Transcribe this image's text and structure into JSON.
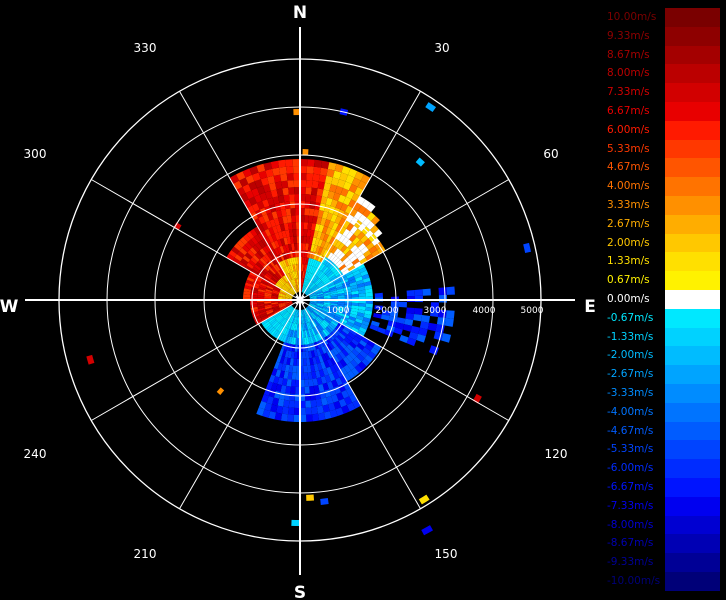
{
  "compass": {
    "north": "N",
    "south": "S",
    "east": "E",
    "west": "W"
  },
  "azimuth_labels": [
    "30",
    "60",
    "120",
    "150",
    "210",
    "240",
    "300",
    "330"
  ],
  "range_labels": [
    "1000",
    "2000",
    "3000",
    "4000",
    "5000"
  ],
  "legend": [
    {
      "label": "10.00m/s",
      "color": "#7a0000"
    },
    {
      "label": "9.33m/s",
      "color": "#8e0000"
    },
    {
      "label": "8.67m/s",
      "color": "#a40000"
    },
    {
      "label": "8.00m/s",
      "color": "#bb0000"
    },
    {
      "label": "7.33m/s",
      "color": "#d20000"
    },
    {
      "label": "6.67m/s",
      "color": "#e80000"
    },
    {
      "label": "6.00m/s",
      "color": "#ff1a00"
    },
    {
      "label": "5.33m/s",
      "color": "#ff3800"
    },
    {
      "label": "4.67m/s",
      "color": "#ff5500"
    },
    {
      "label": "4.00m/s",
      "color": "#ff7300"
    },
    {
      "label": "3.33m/s",
      "color": "#ff9000"
    },
    {
      "label": "2.67m/s",
      "color": "#ffad00"
    },
    {
      "label": "2.00m/s",
      "color": "#ffc800"
    },
    {
      "label": "1.33m/s",
      "color": "#ffe000"
    },
    {
      "label": "0.67m/s",
      "color": "#fff200"
    },
    {
      "label": "0.00m/s",
      "color": "#ffffff"
    },
    {
      "label": "-0.67m/s",
      "color": "#00e8ff"
    },
    {
      "label": "-1.33m/s",
      "color": "#00d2ff"
    },
    {
      "label": "-2.00m/s",
      "color": "#00bcff"
    },
    {
      "label": "-2.67m/s",
      "color": "#00a4ff"
    },
    {
      "label": "-3.33m/s",
      "color": "#008cff"
    },
    {
      "label": "-4.00m/s",
      "color": "#0074ff"
    },
    {
      "label": "-4.67m/s",
      "color": "#005cff"
    },
    {
      "label": "-5.33m/s",
      "color": "#0044ff"
    },
    {
      "label": "-6.00m/s",
      "color": "#002cff"
    },
    {
      "label": "-6.67m/s",
      "color": "#0014ff"
    },
    {
      "label": "-7.33m/s",
      "color": "#0000f0"
    },
    {
      "label": "-8.00m/s",
      "color": "#0000d2"
    },
    {
      "label": "-8.67m/s",
      "color": "#0000b4"
    },
    {
      "label": "-9.33m/s",
      "color": "#000096"
    },
    {
      "label": "-10.00m/s",
      "color": "#000078"
    }
  ]
}
